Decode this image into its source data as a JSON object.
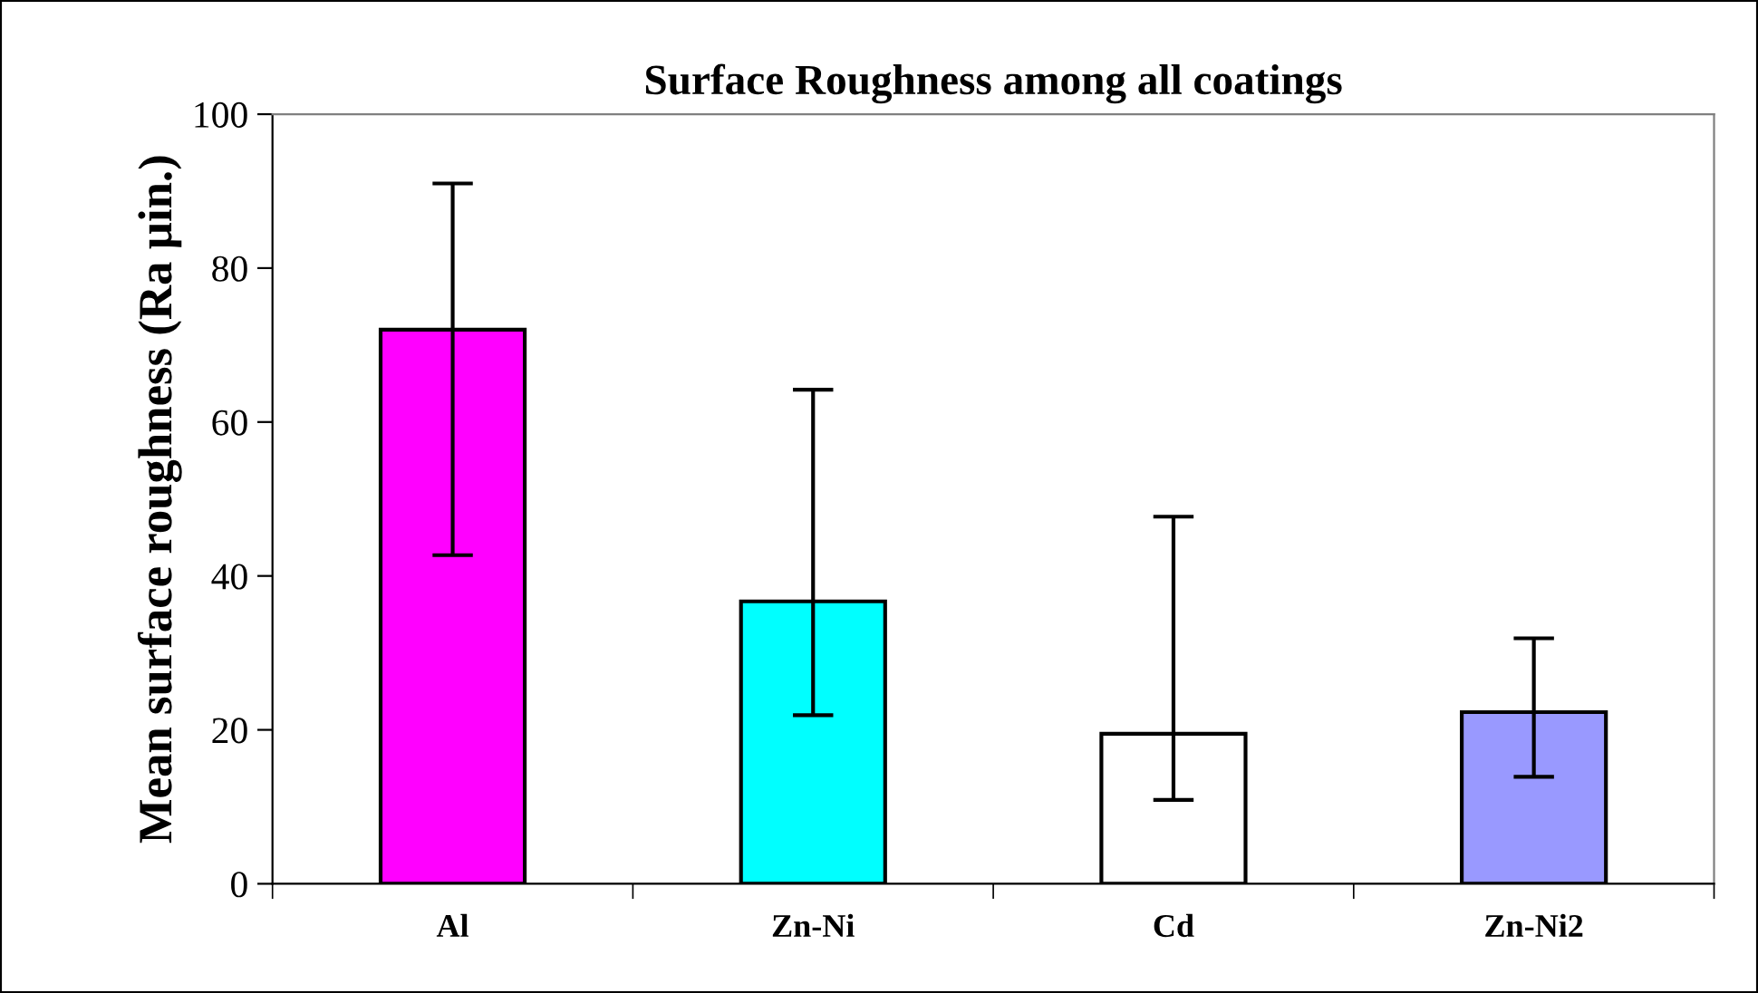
{
  "chart_data": {
    "type": "bar",
    "title": "Surface Roughness among all coatings",
    "ylabel": "Mean surface roughness (Ra µin.)",
    "categories": [
      "Al",
      "Zn-Ni",
      "Cd",
      "Zn-Ni2"
    ],
    "values": [
      72,
      36.7,
      19.5,
      22.3
    ],
    "colors": [
      "#ff00ff",
      "#00ffff",
      "#ffffff",
      "#9999ff"
    ],
    "errors": [
      [
        42.7,
        91
      ],
      [
        21.9,
        64.2
      ],
      [
        10.9,
        47.7
      ],
      [
        13.9,
        31.9
      ]
    ],
    "ylim": [
      0,
      100
    ],
    "yticks": [
      0,
      20,
      40,
      60,
      80,
      100
    ],
    "grid": false,
    "legend": false
  }
}
